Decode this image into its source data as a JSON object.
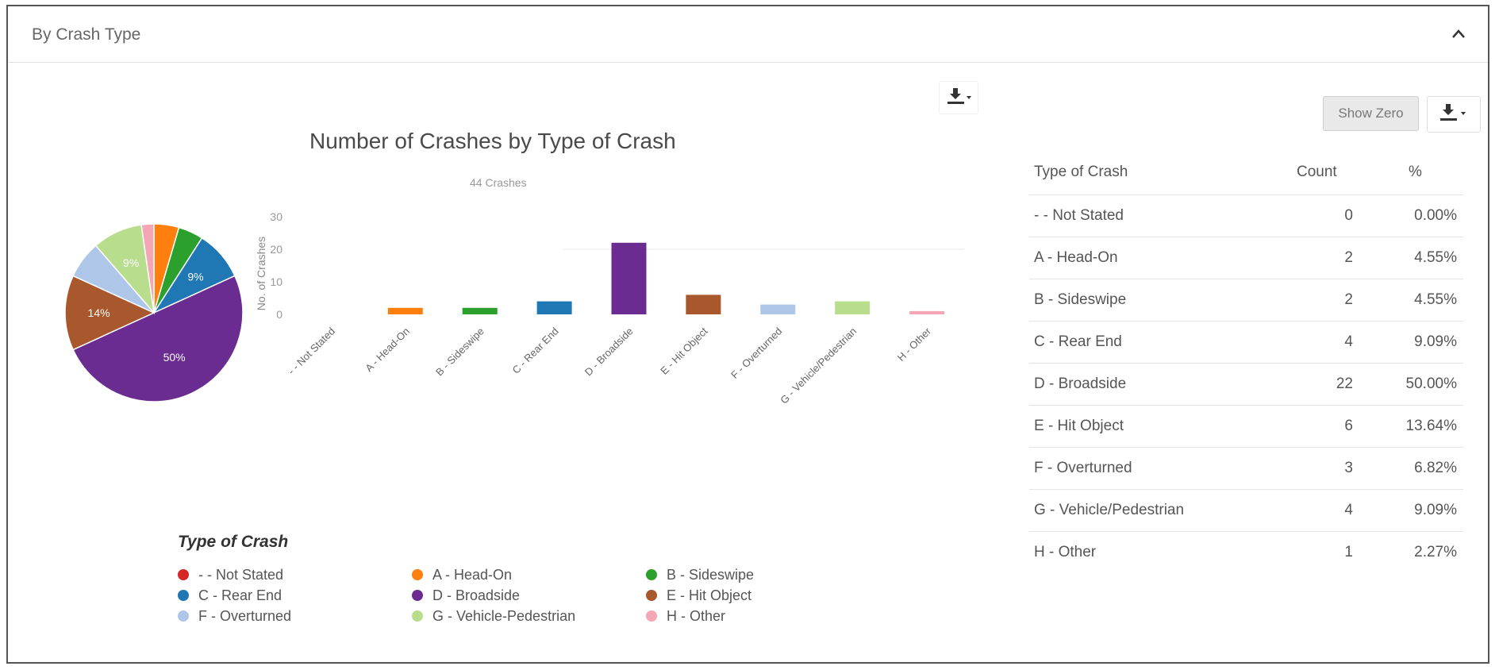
{
  "panel": {
    "title": "By Crash Type",
    "collapse_icon": "chevron-up-icon",
    "export_icon": "download-icon"
  },
  "chart_controls": {
    "export_icon": "download-icon"
  },
  "table_controls": {
    "show_zero_label": "Show Zero",
    "export_icon": "download-icon"
  },
  "chart_data": [
    {
      "type": "pie",
      "categories": [
        "- - Not Stated",
        "A - Head-On",
        "B - Sideswipe",
        "C - Rear End",
        "D - Broadside",
        "E - Hit Object",
        "F - Overturned",
        "G - Vehicle/Pedestrian",
        "H - Other"
      ],
      "values": [
        0,
        2,
        2,
        4,
        22,
        6,
        3,
        4,
        1
      ],
      "data_labels": [
        "",
        "",
        "",
        "9%",
        "50%",
        "14%",
        "",
        "9%",
        ""
      ],
      "colors": [
        "#d62728",
        "#ff7f0e",
        "#2ca02c",
        "#1f77b4",
        "#6a2c91",
        "#a9572d",
        "#aec7e8",
        "#b7dd8d",
        "#f4a6b4"
      ]
    },
    {
      "type": "bar",
      "title": "Number of Crashes by Type of Crash",
      "subtitle": "44 Crashes",
      "ylabel": "No. of Crashes",
      "xlabel": "",
      "categories": [
        "- - Not Stated",
        "A - Head-On",
        "B - Sideswipe",
        "C - Rear End",
        "D - Broadside",
        "E - Hit Object",
        "F - Overturned",
        "G - Vehicle/Pedestrian",
        "H - Other"
      ],
      "values": [
        0,
        2,
        2,
        4,
        22,
        6,
        3,
        4,
        1
      ],
      "yticks": [
        0,
        10,
        20,
        30
      ],
      "ylim": [
        0,
        30
      ],
      "colors": [
        "#d62728",
        "#ff7f0e",
        "#2ca02c",
        "#1f77b4",
        "#6a2c91",
        "#a9572d",
        "#aec7e8",
        "#b7dd8d",
        "#f4a6b4"
      ],
      "legend": {
        "title": "Type of Crash",
        "placement": "bottom",
        "items": [
          "- - Not Stated",
          "A - Head-On",
          "B - Sideswipe",
          "C - Rear End",
          "D - Broadside",
          "E - Hit Object",
          "F - Overturned",
          "G - Vehicle-Pedestrian",
          "H - Other"
        ]
      }
    }
  ],
  "table": {
    "headers": [
      "Type of Crash",
      "Count",
      "%"
    ],
    "rows": [
      {
        "type": "- - Not Stated",
        "count": "0",
        "pct": "0.00%"
      },
      {
        "type": "A - Head-On",
        "count": "2",
        "pct": "4.55%"
      },
      {
        "type": "B - Sideswipe",
        "count": "2",
        "pct": "4.55%"
      },
      {
        "type": "C - Rear End",
        "count": "4",
        "pct": "9.09%"
      },
      {
        "type": "D - Broadside",
        "count": "22",
        "pct": "50.00%"
      },
      {
        "type": "E - Hit Object",
        "count": "6",
        "pct": "13.64%"
      },
      {
        "type": "F - Overturned",
        "count": "3",
        "pct": "6.82%"
      },
      {
        "type": "G - Vehicle/Pedestrian",
        "count": "4",
        "pct": "9.09%"
      },
      {
        "type": "H - Other",
        "count": "1",
        "pct": "2.27%"
      }
    ]
  }
}
